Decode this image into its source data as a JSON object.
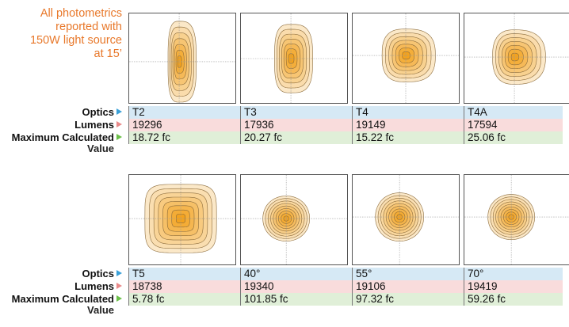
{
  "note": {
    "line1": "All photometrics",
    "line2": "reported with",
    "line3": "150W light source",
    "line4": "at 15’"
  },
  "labels": {
    "optics": "Optics",
    "lumens": "Lumens",
    "max_calc_line1": "Maximum Calculated",
    "max_calc_line2": "Value"
  },
  "rows": [
    {
      "columns": [
        {
          "optics": "T2",
          "lumens": "19296",
          "value": "18.72 fc",
          "pattern": "T2"
        },
        {
          "optics": "T3",
          "lumens": "17936",
          "value": "20.27 fc",
          "pattern": "T3"
        },
        {
          "optics": "T4",
          "lumens": "19149",
          "value": "15.22 fc",
          "pattern": "T4"
        },
        {
          "optics": "T4A",
          "lumens": "17594",
          "value": "25.06 fc",
          "pattern": "T4A"
        }
      ]
    },
    {
      "columns": [
        {
          "optics": "T5",
          "lumens": "18738",
          "value": "5.78 fc",
          "pattern": "T5"
        },
        {
          "optics": "40°",
          "lumens": "19340",
          "value": "101.85 fc",
          "pattern": "40"
        },
        {
          "optics": "55°",
          "lumens": "19106",
          "value": "97.32 fc",
          "pattern": "55"
        },
        {
          "optics": "70°",
          "lumens": "19419",
          "value": "59.26 fc",
          "pattern": "70"
        }
      ]
    }
  ],
  "colors": {
    "note": "#e8782a",
    "optics_arrow": "#3aa0d8",
    "lumens_arrow": "#e98a8a",
    "value_arrow": "#6cc04a",
    "optics_band": "#d6e9f5",
    "lumens_band": "#f9dcdc",
    "value_band": "#e0efd8",
    "contour_outer": "#fbe8c8",
    "contour_inner": "#f3a21e"
  }
}
